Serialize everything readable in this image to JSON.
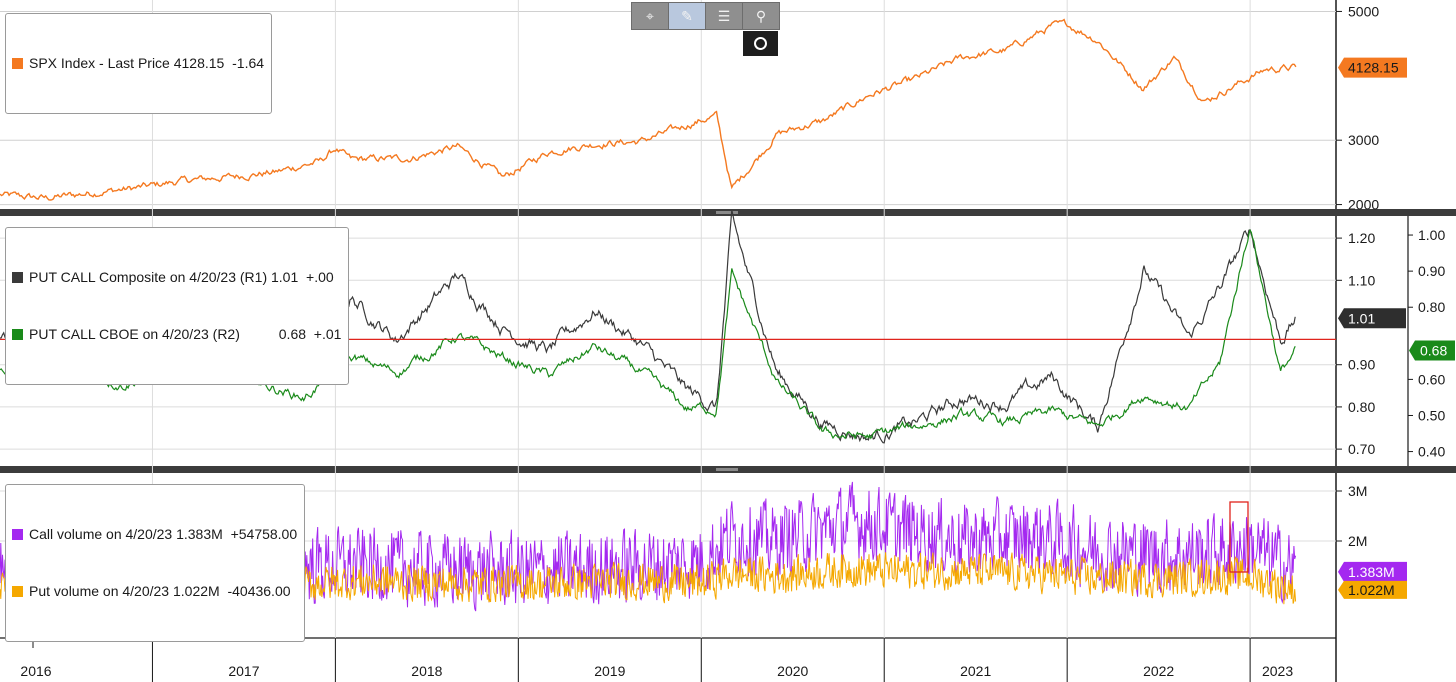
{
  "toolbar": {
    "buttons": [
      {
        "icon": "crosshair-icon",
        "glyph": "⌖"
      },
      {
        "icon": "pencil-icon",
        "glyph": "✎"
      },
      {
        "icon": "list-icon",
        "glyph": "☰"
      },
      {
        "icon": "magnifier-icon",
        "glyph": "⚲"
      }
    ],
    "secondary_icon": "record-icon"
  },
  "panels": {
    "price": {
      "legend": "SPX Index - Last Price 4128.15  -1.64",
      "axis_ticks": [
        "2000",
        "3000",
        "5000"
      ],
      "last_tag": "4128.15",
      "color": "#f47920"
    },
    "ratio": {
      "legend_r1": "PUT CALL Composite on 4/20/23 (R1) 1.01  +.00",
      "legend_r2": "PUT CALL CBOE on 4/20/23 (R2)          0.68  +.01",
      "left_ticks": [
        "0.70",
        "0.80",
        "0.90",
        "1.10",
        "1.20"
      ],
      "right_ticks": [
        "0.40",
        "0.50",
        "0.60",
        "0.80",
        "0.90",
        "1.00"
      ],
      "tag_r1": "1.01",
      "tag_r2": "0.68",
      "color_r1": "#3a3a3a",
      "color_r2": "#1a8a1a",
      "reference_line_color": "#e0241c"
    },
    "volume": {
      "legend_call": "Call volume on 4/20/23 1.383M  +54758.00",
      "legend_put": "Put volume on 4/20/23 1.022M  -40436.00",
      "axis_ticks": [
        "2M",
        "3M"
      ],
      "tag_call": "1.383M",
      "tag_put": "1.022M",
      "color_call": "#a428f0",
      "color_put": "#f5a800"
    }
  },
  "x_axis": {
    "years": [
      "2016",
      "2017",
      "2018",
      "2019",
      "2020",
      "2021",
      "2022",
      "2023"
    ]
  },
  "chart_data": [
    {
      "type": "line",
      "title": "SPX Index - Last Price",
      "x": [
        "2016-03",
        "2016-06",
        "2016-09",
        "2016-12",
        "2017-03",
        "2017-06",
        "2017-09",
        "2017-12",
        "2018-01",
        "2018-02",
        "2018-06",
        "2018-09",
        "2018-12",
        "2019-03",
        "2019-06",
        "2019-09",
        "2019-12",
        "2020-02",
        "2020-03",
        "2020-06",
        "2020-09",
        "2020-12",
        "2021-03",
        "2021-06",
        "2021-09",
        "2021-12",
        "2022-01",
        "2022-03",
        "2022-06",
        "2022-08",
        "2022-10",
        "2022-12",
        "2023-02",
        "2023-04"
      ],
      "series": [
        {
          "name": "SPX Index",
          "values": [
            2150,
            2100,
            2180,
            2260,
            2370,
            2430,
            2500,
            2670,
            2870,
            2700,
            2720,
            2900,
            2420,
            2820,
            2940,
            2980,
            3230,
            3380,
            2240,
            3100,
            3300,
            3700,
            3950,
            4280,
            4400,
            4770,
            4800,
            4550,
            3800,
            4280,
            3600,
            3850,
            4100,
            4128.15
          ]
        }
      ],
      "ylim": [
        1900,
        5100
      ],
      "axis": "right"
    },
    {
      "type": "line",
      "x": [
        "2016-03",
        "2016-07",
        "2016-11",
        "2017-03",
        "2017-07",
        "2017-11",
        "2018-02",
        "2018-05",
        "2018-09",
        "2018-12",
        "2019-03",
        "2019-06",
        "2019-09",
        "2019-12",
        "2020-02",
        "2020-03",
        "2020-06",
        "2020-09",
        "2020-12",
        "2021-03",
        "2021-06",
        "2021-09",
        "2021-12",
        "2022-03",
        "2022-06",
        "2022-09",
        "2022-11",
        "2023-01",
        "2023-03",
        "2023-04"
      ],
      "series": [
        {
          "name": "PUT CALL Composite",
          "values": [
            0.96,
            1.06,
            0.93,
            0.97,
            0.92,
            0.87,
            1.06,
            0.96,
            1.11,
            0.99,
            0.93,
            1.03,
            0.95,
            0.84,
            0.8,
            1.24,
            0.88,
            0.76,
            0.73,
            0.76,
            0.82,
            0.81,
            0.87,
            0.75,
            1.13,
            0.96,
            1.08,
            1.22,
            0.96,
            1.01
          ]
        },
        {
          "name": "PUT CALL CBOE",
          "values": [
            0.62,
            0.64,
            0.59,
            0.63,
            0.6,
            0.55,
            0.66,
            0.62,
            0.72,
            0.66,
            0.61,
            0.69,
            0.62,
            0.52,
            0.52,
            0.89,
            0.59,
            0.45,
            0.44,
            0.47,
            0.5,
            0.48,
            0.51,
            0.47,
            0.56,
            0.52,
            0.64,
            1.03,
            0.62,
            0.68
          ]
        }
      ],
      "ylim_left": [
        0.66,
        1.25
      ],
      "ylim_right": [
        0.36,
        1.05
      ],
      "reference_line": 0.96
    },
    {
      "type": "line",
      "x": [
        "2016-03",
        "2016-09",
        "2017-03",
        "2017-09",
        "2018-03",
        "2018-09",
        "2019-03",
        "2019-09",
        "2020-01",
        "2020-03",
        "2020-06",
        "2020-11",
        "2021-01",
        "2021-06",
        "2021-11",
        "2022-03",
        "2022-08",
        "2022-11",
        "2023-01",
        "2023-04"
      ],
      "series": [
        {
          "name": "Call volume",
          "values": [
            1.3,
            1.2,
            1.4,
            1.5,
            1.5,
            1.4,
            1.4,
            1.5,
            1.6,
            2.1,
            2.0,
            2.4,
            2.3,
            2.0,
            2.1,
            1.8,
            1.7,
            1.8,
            1.9,
            1.383
          ]
        },
        {
          "name": "Put volume",
          "values": [
            1.1,
            1.05,
            1.1,
            1.1,
            1.2,
            1.15,
            1.15,
            1.2,
            1.15,
            1.35,
            1.3,
            1.45,
            1.4,
            1.4,
            1.35,
            1.25,
            1.25,
            1.3,
            1.3,
            1.022
          ]
        }
      ],
      "ylim": [
        0.1,
        3.3
      ],
      "unit": "M"
    }
  ]
}
